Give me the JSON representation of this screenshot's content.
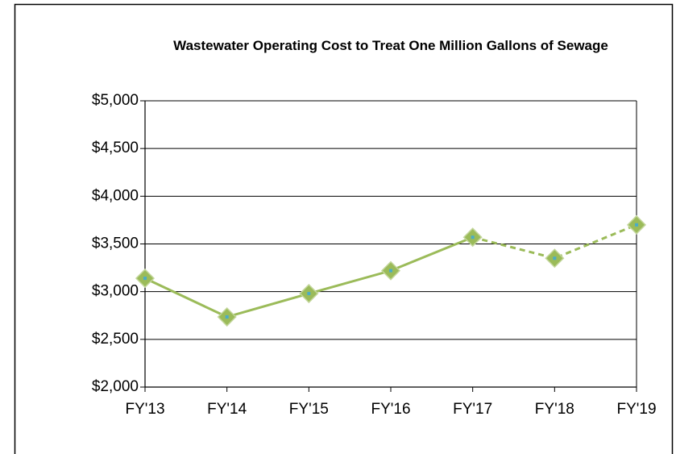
{
  "chart_data": {
    "type": "line",
    "title": "Wastewater Operating Cost to Treat One Million Gallons of Sewage",
    "categories": [
      "FY'13",
      "FY'14",
      "FY'15",
      "FY'16",
      "FY'17",
      "FY'18",
      "FY'19"
    ],
    "series": [
      {
        "color": "#9bbb59",
        "marker_center_color": "#4bacc6",
        "values": [
          3140,
          2735,
          2980,
          3220,
          3570,
          3350,
          3700
        ],
        "dashed_from_index": 4
      }
    ],
    "ylim": [
      2000,
      5000
    ],
    "yticks": [
      {
        "value": 2000,
        "label": "$2,000"
      },
      {
        "value": 2500,
        "label": "$2,500"
      },
      {
        "value": 3000,
        "label": "$3,000"
      },
      {
        "value": 3500,
        "label": "$3,500"
      },
      {
        "value": 4000,
        "label": "$4,000"
      },
      {
        "value": 4500,
        "label": "$4,500"
      },
      {
        "value": 5000,
        "label": "$5,000"
      }
    ],
    "grid": true
  }
}
